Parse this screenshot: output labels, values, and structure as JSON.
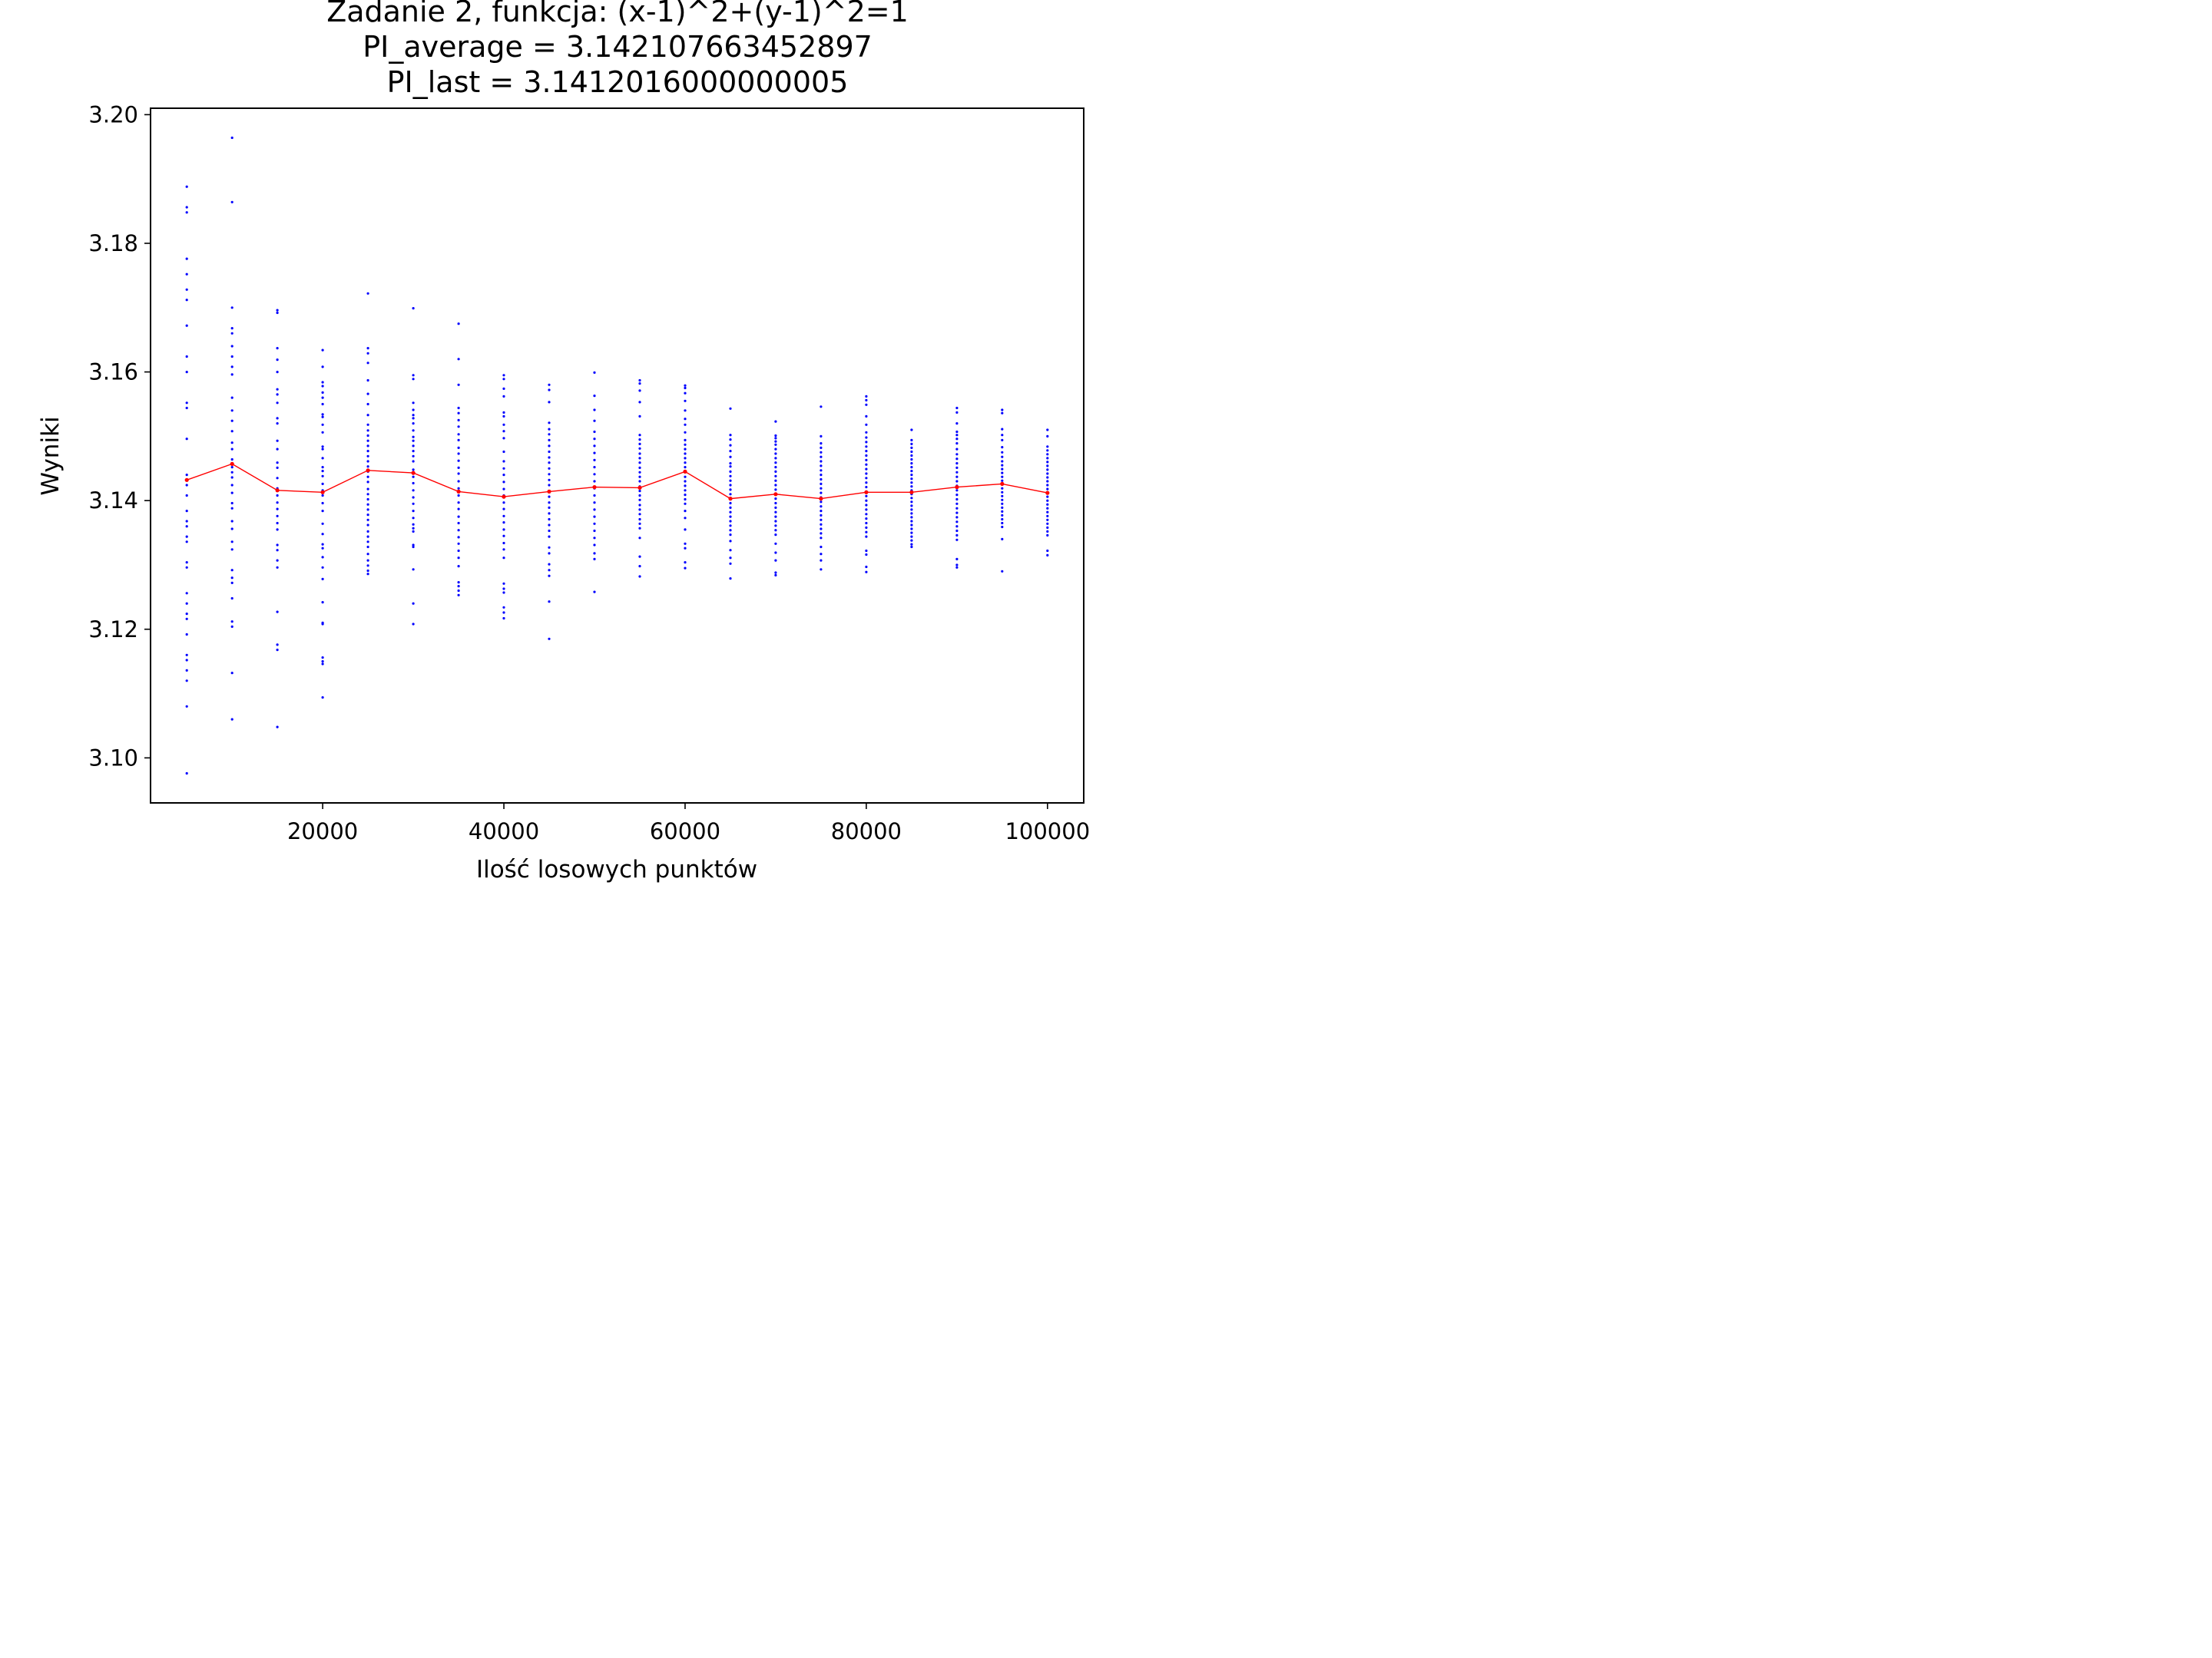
{
  "chart_data": {
    "type": "scatter",
    "title_lines": [
      "Zadanie 2, funkcja: (x-1)^2+(y-1)^2=1",
      "PI_average = 3.142107663452897",
      "PI_last = 3.1412016000000005"
    ],
    "xlabel": "Ilość losowych punktów",
    "ylabel": "Wyniki",
    "xlim": [
      1000,
      104000
    ],
    "ylim": [
      3.093,
      3.201
    ],
    "xticks": [
      20000,
      40000,
      60000,
      80000,
      100000
    ],
    "yticks": [
      3.1,
      3.12,
      3.14,
      3.16,
      3.18,
      3.2
    ],
    "ytick_labels": [
      "3.10",
      "3.12",
      "3.14",
      "3.16",
      "3.18",
      "3.20"
    ],
    "grid": false,
    "colors": {
      "points": "#0000ff",
      "average_line": "#ff0000"
    },
    "series": [
      {
        "kind": "points",
        "color": "#0000ff",
        "groups": [
          {
            "x": 5000,
            "values": [
              3.1888,
              3.1856,
              3.1848,
              3.1776,
              3.1752,
              3.1728,
              3.1712,
              3.1672,
              3.1624,
              3.16,
              3.1552,
              3.1544,
              3.1496,
              3.144,
              3.1424,
              3.1408,
              3.1384,
              3.1368,
              3.136,
              3.1344,
              3.1336,
              3.1304,
              3.1296,
              3.1256,
              3.124,
              3.1224,
              3.1216,
              3.1192,
              3.116,
              3.1152,
              3.1136,
              3.112,
              3.108,
              3.0976
            ]
          },
          {
            "x": 10000,
            "values": [
              3.1964,
              3.1864,
              3.17,
              3.1668,
              3.166,
              3.164,
              3.1624,
              3.1608,
              3.1596,
              3.156,
              3.154,
              3.1524,
              3.1508,
              3.149,
              3.148,
              3.1464,
              3.1452,
              3.1444,
              3.1436,
              3.1424,
              3.1412,
              3.1396,
              3.1388,
              3.1368,
              3.1356,
              3.1336,
              3.1324,
              3.1292,
              3.128,
              3.1272,
              3.1248,
              3.1212,
              3.1204,
              3.1132,
              3.106
            ]
          },
          {
            "x": 15000,
            "values": [
              3.1696,
              3.1692,
              3.1637,
              3.1619,
              3.16,
              3.1573,
              3.1565,
              3.1552,
              3.1528,
              3.152,
              3.1493,
              3.148,
              3.1459,
              3.1451,
              3.1435,
              3.1419,
              3.1408,
              3.1397,
              3.1387,
              3.1376,
              3.1365,
              3.1355,
              3.1331,
              3.1323,
              3.1307,
              3.1296,
              3.1227,
              3.1176,
              3.1168,
              3.1048
            ]
          },
          {
            "x": 20000,
            "values": [
              3.1634,
              3.1608,
              3.1584,
              3.1578,
              3.1568,
              3.156,
              3.155,
              3.1534,
              3.153,
              3.1518,
              3.1506,
              3.1484,
              3.148,
              3.1466,
              3.1452,
              3.1446,
              3.1438,
              3.1426,
              3.1416,
              3.1408,
              3.1396,
              3.1384,
              3.1364,
              3.1348,
              3.1332,
              3.1326,
              3.1312,
              3.1296,
              3.1278,
              3.1242,
              3.121,
              3.1208,
              3.1156,
              3.115,
              3.1146,
              3.1094
            ]
          },
          {
            "x": 25000,
            "values": [
              3.1722,
              3.1637,
              3.1629,
              3.1614,
              3.1587,
              3.1566,
              3.155,
              3.1533,
              3.1518,
              3.1509,
              3.1501,
              3.1493,
              3.1485,
              3.1477,
              3.1469,
              3.1461,
              3.1453,
              3.1445,
              3.1437,
              3.1429,
              3.1418,
              3.141,
              3.1402,
              3.1394,
              3.1386,
              3.1378,
              3.137,
              3.1362,
              3.1352,
              3.1344,
              3.1336,
              3.1328,
              3.1317,
              3.1307,
              3.1299,
              3.1291,
              3.1286
            ]
          },
          {
            "x": 30000,
            "values": [
              3.1699,
              3.1595,
              3.1589,
              3.1552,
              3.1541,
              3.1533,
              3.1528,
              3.152,
              3.1509,
              3.1499,
              3.1493,
              3.1485,
              3.1477,
              3.1469,
              3.1461,
              3.1448,
              3.1437,
              3.1427,
              3.1416,
              3.1405,
              3.1395,
              3.1384,
              3.1373,
              3.1363,
              3.1357,
              3.1352,
              3.1331,
              3.1328,
              3.1293,
              3.124,
              3.1208
            ]
          },
          {
            "x": 35000,
            "values": [
              3.1675,
              3.162,
              3.158,
              3.1544,
              3.1536,
              3.1525,
              3.1515,
              3.1503,
              3.1494,
              3.1482,
              3.1473,
              3.1462,
              3.1451,
              3.1442,
              3.143,
              3.1419,
              3.1408,
              3.1397,
              3.1387,
              3.1375,
              3.1365,
              3.1354,
              3.1343,
              3.1333,
              3.1322,
              3.1311,
              3.1298,
              3.1273,
              3.1267,
              3.126,
              3.1253
            ]
          },
          {
            "x": 40000,
            "values": [
              3.1595,
              3.1589,
              3.1574,
              3.1562,
              3.1537,
              3.1531,
              3.1518,
              3.1508,
              3.1497,
              3.1476,
              3.1461,
              3.145,
              3.144,
              3.1429,
              3.1418,
              3.1408,
              3.1397,
              3.1387,
              3.1376,
              3.1366,
              3.1355,
              3.1345,
              3.1334,
              3.1324,
              3.1311,
              3.1271,
              3.1263,
              3.1257,
              3.1234,
              3.1226,
              3.1217
            ]
          },
          {
            "x": 45000,
            "values": [
              3.158,
              3.1572,
              3.1553,
              3.1521,
              3.1511,
              3.1503,
              3.1494,
              3.1485,
              3.1476,
              3.1467,
              3.1459,
              3.145,
              3.1441,
              3.1432,
              3.1424,
              3.1415,
              3.1406,
              3.1397,
              3.1389,
              3.138,
              3.1371,
              3.1362,
              3.1353,
              3.1344,
              3.1327,
              3.1318,
              3.1301,
              3.1292,
              3.1283,
              3.1243,
              3.1185
            ]
          },
          {
            "x": 50000,
            "values": [
              3.1599,
              3.1563,
              3.1541,
              3.1524,
              3.1507,
              3.1496,
              3.1485,
              3.1474,
              3.1463,
              3.1452,
              3.1441,
              3.143,
              3.1419,
              3.1408,
              3.1397,
              3.1386,
              3.1375,
              3.1364,
              3.1353,
              3.1342,
              3.1331,
              3.1318,
              3.1309,
              3.1258
            ]
          },
          {
            "x": 55000,
            "values": [
              3.1587,
              3.1582,
              3.1571,
              3.1553,
              3.1531,
              3.1502,
              3.1495,
              3.1488,
              3.1481,
              3.1473,
              3.1466,
              3.1459,
              3.1451,
              3.1444,
              3.1437,
              3.143,
              3.1422,
              3.1415,
              3.1408,
              3.1401,
              3.1393,
              3.1386,
              3.1379,
              3.1371,
              3.1364,
              3.1357,
              3.1342,
              3.1313,
              3.1298,
              3.1282
            ]
          },
          {
            "x": 60000,
            "values": [
              3.1579,
              3.1575,
              3.1567,
              3.1555,
              3.154,
              3.1527,
              3.1518,
              3.1506,
              3.1494,
              3.1487,
              3.148,
              3.1473,
              3.1466,
              3.1459,
              3.1452,
              3.1445,
              3.1437,
              3.143,
              3.1423,
              3.1416,
              3.1409,
              3.1402,
              3.1395,
              3.1384,
              3.1373,
              3.1355,
              3.1333,
              3.1326,
              3.1304,
              3.1295
            ]
          },
          {
            "x": 65000,
            "values": [
              3.1543,
              3.1502,
              3.1495,
              3.1486,
              3.1477,
              3.1468,
              3.1458,
              3.1453,
              3.1445,
              3.1438,
              3.1431,
              3.1424,
              3.1417,
              3.141,
              3.1403,
              3.1396,
              3.1389,
              3.1382,
              3.1375,
              3.1368,
              3.1361,
              3.1354,
              3.1347,
              3.1337,
              3.1323,
              3.1311,
              3.1302,
              3.1279
            ]
          },
          {
            "x": 70000,
            "values": [
              3.1523,
              3.1501,
              3.1497,
              3.1492,
              3.1487,
              3.148,
              3.1473,
              3.1466,
              3.1459,
              3.1452,
              3.1445,
              3.1438,
              3.1431,
              3.1424,
              3.1417,
              3.141,
              3.1403,
              3.1396,
              3.1389,
              3.1382,
              3.1375,
              3.1368,
              3.1361,
              3.1354,
              3.1347,
              3.1333,
              3.1319,
              3.1307,
              3.1288,
              3.1284
            ]
          },
          {
            "x": 75000,
            "values": [
              3.1546,
              3.15,
              3.1489,
              3.1482,
              3.1475,
              3.1468,
              3.1461,
              3.1454,
              3.1447,
              3.144,
              3.1433,
              3.1426,
              3.1419,
              3.1412,
              3.1405,
              3.1398,
              3.1391,
              3.1384,
              3.1377,
              3.137,
              3.1363,
              3.1356,
              3.1349,
              3.1342,
              3.1328,
              3.1317,
              3.1307,
              3.1293
            ]
          },
          {
            "x": 80000,
            "values": [
              3.1562,
              3.1556,
              3.1549,
              3.1531,
              3.1518,
              3.1506,
              3.1498,
              3.1491,
              3.1484,
              3.1477,
              3.147,
              3.1463,
              3.1456,
              3.1449,
              3.1442,
              3.1435,
              3.1428,
              3.1421,
              3.1414,
              3.1407,
              3.14,
              3.1393,
              3.1386,
              3.1379,
              3.1372,
              3.1365,
              3.1358,
              3.1351,
              3.1344,
              3.1322,
              3.1316,
              3.1297,
              3.1289
            ]
          },
          {
            "x": 85000,
            "values": [
              3.151,
              3.1494,
              3.1488,
              3.1482,
              3.1476,
              3.147,
              3.1464,
              3.1458,
              3.1452,
              3.1446,
              3.144,
              3.1434,
              3.1428,
              3.1422,
              3.1416,
              3.141,
              3.1404,
              3.1398,
              3.1392,
              3.1386,
              3.138,
              3.1374,
              3.1368,
              3.1362,
              3.1356,
              3.135,
              3.1344,
              3.1338,
              3.1332,
              3.1328
            ]
          },
          {
            "x": 90000,
            "values": [
              3.1544,
              3.1537,
              3.152,
              3.1507,
              3.1502,
              3.1496,
              3.1489,
              3.148,
              3.1472,
              3.1465,
              3.1458,
              3.1451,
              3.1444,
              3.1437,
              3.143,
              3.1423,
              3.1416,
              3.1409,
              3.1402,
              3.1395,
              3.1388,
              3.1381,
              3.1374,
              3.1367,
              3.136,
              3.1353,
              3.1346,
              3.1339,
              3.1309,
              3.13,
              3.1296
            ]
          },
          {
            "x": 95000,
            "values": [
              3.1541,
              3.1536,
              3.1511,
              3.1502,
              3.1494,
              3.1483,
              3.1475,
              3.1468,
              3.1461,
              3.1455,
              3.1449,
              3.1443,
              3.1437,
              3.1431,
              3.1425,
              3.1419,
              3.1413,
              3.1407,
              3.1401,
              3.1395,
              3.1389,
              3.1383,
              3.1377,
              3.1371,
              3.1365,
              3.1359,
              3.134,
              3.129
            ]
          },
          {
            "x": 100000,
            "values": [
              3.151,
              3.15,
              3.1484,
              3.1478,
              3.1472,
              3.1466,
              3.146,
              3.1454,
              3.1448,
              3.1442,
              3.1436,
              3.143,
              3.1424,
              3.1418,
              3.1412,
              3.1406,
              3.14,
              3.1394,
              3.1388,
              3.1382,
              3.1376,
              3.137,
              3.1364,
              3.1358,
              3.1352,
              3.1346,
              3.1322,
              3.1315
            ]
          }
        ]
      },
      {
        "kind": "average_line",
        "color": "#ff0000",
        "x": [
          5000,
          10000,
          15000,
          20000,
          25000,
          30000,
          35000,
          40000,
          45000,
          50000,
          55000,
          60000,
          65000,
          70000,
          75000,
          80000,
          85000,
          90000,
          95000,
          100000
        ],
        "y": [
          3.1432,
          3.1457,
          3.1416,
          3.1413,
          3.1447,
          3.1443,
          3.1414,
          3.1406,
          3.1414,
          3.1421,
          3.142,
          3.1445,
          3.1403,
          3.141,
          3.1403,
          3.1413,
          3.1413,
          3.1421,
          3.1426,
          3.1412
        ]
      }
    ]
  }
}
